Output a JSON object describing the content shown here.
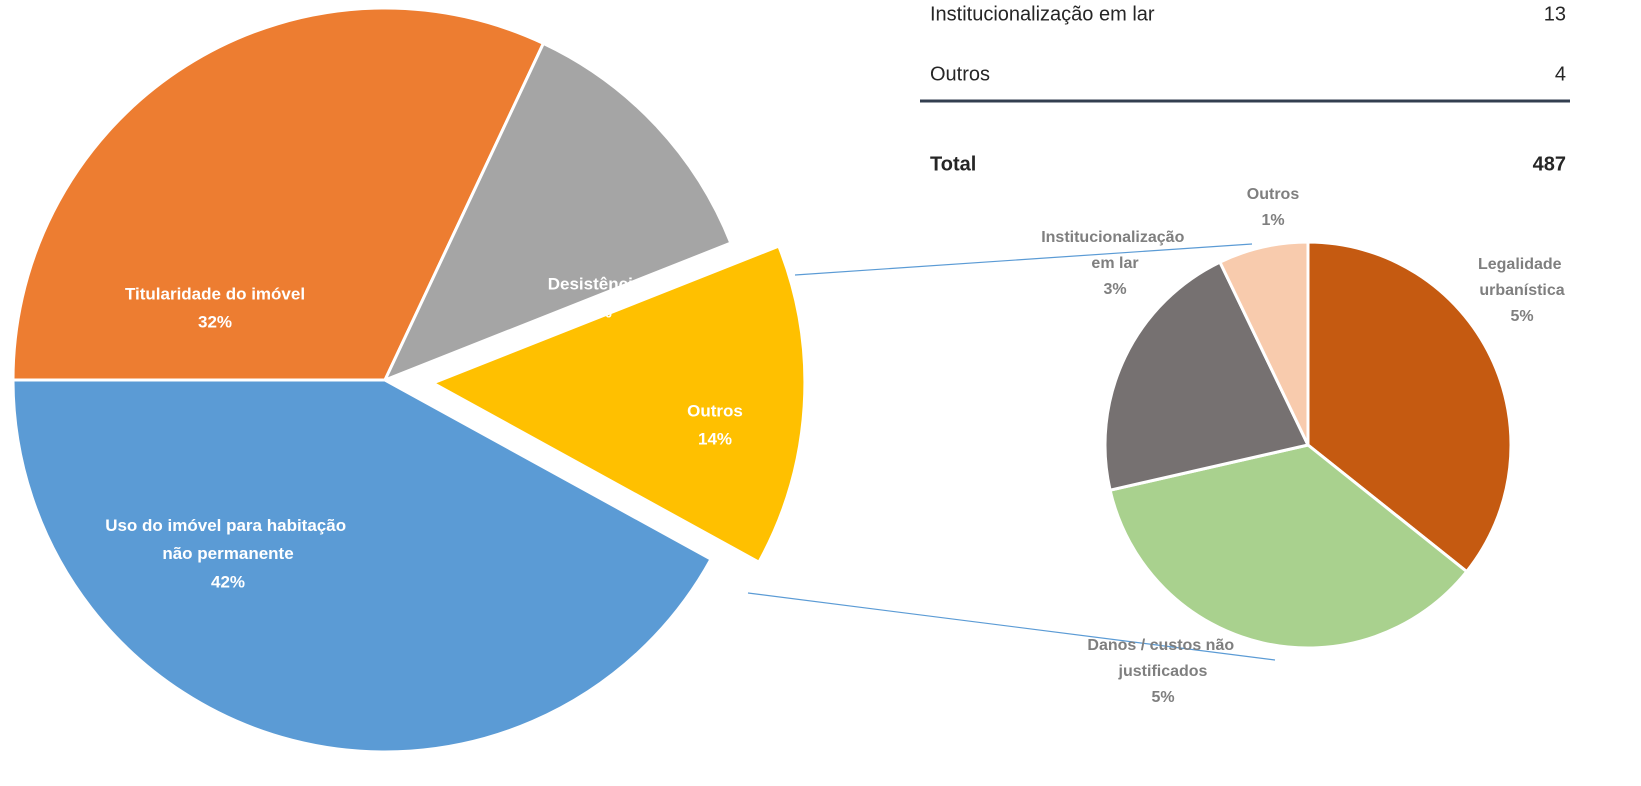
{
  "chart_data": [
    {
      "type": "pie",
      "categories": [
        "Titularidade do imóvel",
        "Desistência",
        "Outros",
        "Uso do imóvel para habitação não permanente"
      ],
      "values": [
        32,
        12,
        14,
        42
      ],
      "value_labels": [
        "32%",
        "12%",
        "14%",
        "42%"
      ],
      "colors": [
        "#ed7d31",
        "#a5a5a5",
        "#ffc000",
        "#5b9bd5"
      ]
    },
    {
      "type": "pie",
      "categories": [
        "Legalidade urbanística",
        "Danos / custos não justificados",
        "Institucionalização em lar",
        "Outros"
      ],
      "values": [
        5,
        5,
        3,
        1
      ],
      "value_labels": [
        "5%",
        "5%",
        "3%",
        "1%"
      ],
      "colors": [
        "#c55a11",
        "#a9d18e",
        "#767171",
        "#f8cbad"
      ]
    }
  ],
  "table": {
    "rows": [
      [
        "Institucionalização em lar",
        "13"
      ],
      [
        "Outros",
        "4"
      ]
    ],
    "total": [
      "Total",
      "487"
    ]
  }
}
